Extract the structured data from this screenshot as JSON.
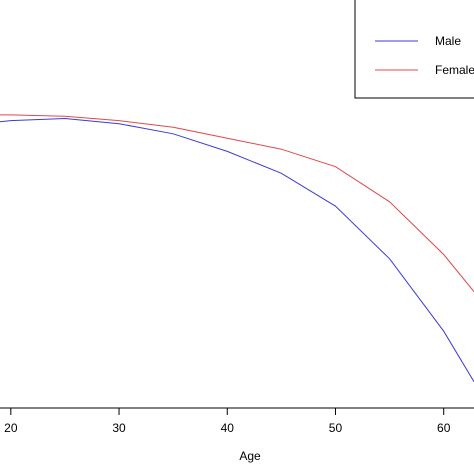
{
  "chart_data": {
    "type": "line",
    "title": "",
    "xlabel": "Age",
    "ylabel": "",
    "xlim": [
      19,
      62.8
    ],
    "ylim": [
      0.72,
      1.65
    ],
    "x_ticks": [
      {
        "value": 20,
        "label": "20"
      },
      {
        "value": 30,
        "label": "30"
      },
      {
        "value": 40,
        "label": "40"
      },
      {
        "value": 50,
        "label": "50"
      },
      {
        "value": 60,
        "label": "60"
      }
    ],
    "legend_position": "top-right",
    "grid": false,
    "series": [
      {
        "name": "Male",
        "color": "#3b3bd6",
        "x": [
          19,
          20,
          25,
          30,
          35,
          40,
          45,
          50,
          55,
          60,
          62.8
        ],
        "y": [
          1.3725,
          1.375,
          1.38,
          1.368,
          1.345,
          1.305,
          1.255,
          1.18,
          1.06,
          0.895,
          0.78
        ]
      },
      {
        "name": "Female",
        "color": "#e0484c",
        "x": [
          19,
          20,
          25,
          30,
          35,
          40,
          45,
          50,
          55,
          60,
          62.8
        ],
        "y": [
          1.388,
          1.388,
          1.385,
          1.375,
          1.36,
          1.335,
          1.31,
          1.27,
          1.19,
          1.07,
          0.985
        ]
      }
    ]
  }
}
